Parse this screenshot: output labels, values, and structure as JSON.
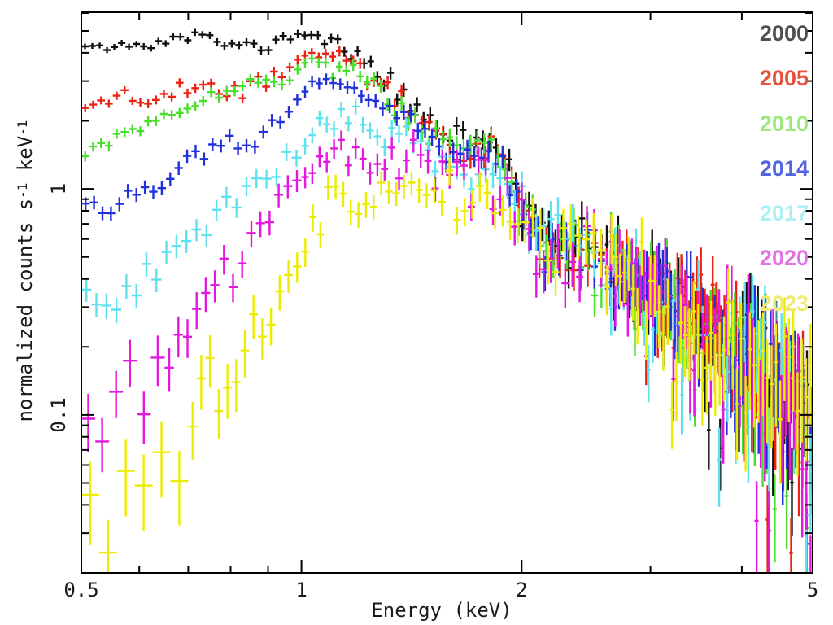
{
  "chart_data": {
    "type": "scatter",
    "style": "xray-spectrum-error-crosses",
    "title": "",
    "xlabel": "Energy (keV)",
    "ylabel": "normalized counts s^-1 keV^-1",
    "ylabel_parts": {
      "base1": "normalized counts s",
      "exp1": "-1",
      "base2": " keV",
      "exp2": "-1"
    },
    "x_scale": "log",
    "y_scale": "log",
    "x_range": [
      0.5,
      5.0
    ],
    "y_range": [
      0.02,
      6.05
    ],
    "x_ticks_major": [
      {
        "value": 0.5,
        "label": "0.5"
      },
      {
        "value": 1,
        "label": "1"
      },
      {
        "value": 2,
        "label": "2"
      },
      {
        "value": 5,
        "label": "5"
      }
    ],
    "x_ticks_minor": [
      0.6,
      0.7,
      0.8,
      0.9,
      3,
      4
    ],
    "y_ticks_major": [
      {
        "value": 1,
        "label": "1"
      },
      {
        "value": 0.1,
        "label": "0.1"
      }
    ],
    "y_ticks_minor": [
      6,
      5,
      4,
      3,
      2,
      0.9,
      0.8,
      0.7,
      0.6,
      0.5,
      0.4,
      0.3,
      0.2,
      0.09,
      0.08,
      0.07,
      0.06,
      0.05,
      0.04,
      0.03
    ],
    "frame_color": "#000000",
    "tick_label_color": "#1a1a1a",
    "legend_position": "top-right",
    "noise_model": {
      "base": 0.06,
      "slope": 0.12,
      "cap": 0.42,
      "scatter": 0.85
    },
    "common_tail": [
      [
        2.3,
        0.55
      ],
      [
        2.45,
        0.56
      ],
      [
        2.6,
        0.47
      ],
      [
        2.8,
        0.41
      ],
      [
        3.0,
        0.35
      ],
      [
        3.2,
        0.3
      ],
      [
        3.5,
        0.26
      ],
      [
        3.8,
        0.215
      ],
      [
        4.1,
        0.18
      ],
      [
        4.4,
        0.15
      ],
      [
        4.7,
        0.12
      ],
      [
        5.0,
        0.095
      ]
    ],
    "series": [
      {
        "name": "2000",
        "color": "#111111",
        "legend_color": "#4f4f4f",
        "seed": 11,
        "err_scale": 1.0,
        "segments": [
          [
            0.5,
            1.0,
            30
          ],
          [
            1.0,
            2.6,
            46
          ],
          [
            2.6,
            5.0,
            55
          ]
        ],
        "anchors": [
          [
            0.5,
            4.4
          ],
          [
            0.56,
            4.35
          ],
          [
            0.62,
            4.3
          ],
          [
            0.68,
            4.7
          ],
          [
            0.74,
            4.7
          ],
          [
            0.8,
            4.35
          ],
          [
            0.86,
            4.2
          ],
          [
            0.92,
            4.45
          ],
          [
            1.0,
            4.95
          ],
          [
            1.06,
            4.75
          ],
          [
            1.12,
            4.35
          ],
          [
            1.2,
            3.8
          ],
          [
            1.3,
            3.1
          ],
          [
            1.4,
            2.35
          ],
          [
            1.5,
            2.05
          ],
          [
            1.6,
            1.8
          ],
          [
            1.7,
            1.72
          ],
          [
            1.8,
            1.68
          ],
          [
            1.9,
            1.5
          ],
          [
            2.0,
            0.92
          ],
          [
            2.1,
            0.66
          ]
        ]
      },
      {
        "name": "2005",
        "color": "#ee2012",
        "legend_color": "#e2543e",
        "seed": 22,
        "err_scale": 1.0,
        "segments": [
          [
            0.5,
            1.0,
            28
          ],
          [
            1.0,
            2.6,
            44
          ],
          [
            2.6,
            5.0,
            53
          ]
        ],
        "anchors": [
          [
            0.5,
            2.25
          ],
          [
            0.54,
            2.4
          ],
          [
            0.58,
            2.65
          ],
          [
            0.63,
            2.5
          ],
          [
            0.68,
            2.7
          ],
          [
            0.73,
            2.85
          ],
          [
            0.78,
            2.65
          ],
          [
            0.83,
            2.8
          ],
          [
            0.88,
            3.05
          ],
          [
            0.93,
            3.25
          ],
          [
            0.98,
            3.75
          ],
          [
            1.03,
            4.05
          ],
          [
            1.1,
            3.85
          ],
          [
            1.2,
            3.45
          ],
          [
            1.3,
            2.9
          ],
          [
            1.4,
            2.25
          ],
          [
            1.5,
            1.95
          ],
          [
            1.6,
            1.65
          ],
          [
            1.75,
            1.55
          ],
          [
            1.9,
            1.4
          ],
          [
            2.0,
            0.88
          ],
          [
            2.1,
            0.63
          ]
        ]
      },
      {
        "name": "2010",
        "color": "#4ade2e",
        "legend_color": "#9be87b",
        "seed": 33,
        "err_scale": 1.0,
        "segments": [
          [
            0.5,
            1.0,
            28
          ],
          [
            1.0,
            2.6,
            44
          ],
          [
            2.6,
            5.0,
            52
          ]
        ],
        "anchors": [
          [
            0.5,
            1.36
          ],
          [
            0.55,
            1.68
          ],
          [
            0.6,
            1.82
          ],
          [
            0.65,
            2.15
          ],
          [
            0.7,
            2.3
          ],
          [
            0.75,
            2.55
          ],
          [
            0.8,
            2.65
          ],
          [
            0.85,
            2.85
          ],
          [
            0.9,
            2.95
          ],
          [
            0.95,
            3.15
          ],
          [
            1.03,
            3.7
          ],
          [
            1.1,
            3.45
          ],
          [
            1.2,
            3.1
          ],
          [
            1.3,
            2.7
          ],
          [
            1.4,
            2.15
          ],
          [
            1.5,
            1.85
          ],
          [
            1.6,
            1.55
          ],
          [
            1.75,
            1.5
          ],
          [
            1.9,
            1.35
          ],
          [
            2.0,
            0.85
          ],
          [
            2.1,
            0.62
          ]
        ]
      },
      {
        "name": "2014",
        "color": "#2230db",
        "legend_color": "#5465e2",
        "seed": 44,
        "err_scale": 1.0,
        "segments": [
          [
            0.5,
            1.0,
            26
          ],
          [
            1.0,
            2.6,
            43
          ],
          [
            2.6,
            5.0,
            52
          ]
        ],
        "anchors": [
          [
            0.5,
            0.85
          ],
          [
            0.55,
            0.82
          ],
          [
            0.6,
            0.95
          ],
          [
            0.65,
            1.1
          ],
          [
            0.7,
            1.3
          ],
          [
            0.75,
            1.5
          ],
          [
            0.78,
            1.62
          ],
          [
            0.82,
            1.55
          ],
          [
            0.86,
            1.7
          ],
          [
            0.9,
            1.9
          ],
          [
            0.95,
            2.2
          ],
          [
            1.0,
            2.6
          ],
          [
            1.05,
            2.9
          ],
          [
            1.1,
            3.0
          ],
          [
            1.15,
            2.8
          ],
          [
            1.2,
            2.6
          ],
          [
            1.3,
            2.3
          ],
          [
            1.4,
            2.0
          ],
          [
            1.5,
            1.7
          ],
          [
            1.6,
            1.42
          ],
          [
            1.7,
            1.36
          ],
          [
            1.8,
            1.32
          ],
          [
            1.9,
            1.25
          ],
          [
            2.0,
            0.82
          ],
          [
            2.1,
            0.62
          ]
        ]
      },
      {
        "name": "2017",
        "color": "#5fe2ef",
        "legend_color": "#aeeff1",
        "seed": 55,
        "err_scale": 1.1,
        "segments": [
          [
            0.5,
            1.0,
            22
          ],
          [
            1.0,
            2.6,
            42
          ],
          [
            2.6,
            5.0,
            50
          ]
        ],
        "anchors": [
          [
            0.5,
            0.34
          ],
          [
            0.54,
            0.29
          ],
          [
            0.58,
            0.34
          ],
          [
            0.62,
            0.42
          ],
          [
            0.66,
            0.47
          ],
          [
            0.7,
            0.55
          ],
          [
            0.75,
            0.68
          ],
          [
            0.8,
            0.83
          ],
          [
            0.85,
            0.95
          ],
          [
            0.9,
            1.1
          ],
          [
            0.95,
            1.3
          ],
          [
            1.0,
            1.55
          ],
          [
            1.05,
            1.8
          ],
          [
            1.1,
            2.0
          ],
          [
            1.15,
            2.1
          ],
          [
            1.2,
            2.0
          ],
          [
            1.3,
            1.85
          ],
          [
            1.4,
            1.75
          ],
          [
            1.5,
            1.45
          ],
          [
            1.6,
            1.22
          ],
          [
            1.7,
            1.17
          ],
          [
            1.8,
            1.15
          ],
          [
            1.9,
            1.1
          ],
          [
            2.0,
            0.78
          ],
          [
            2.1,
            0.6
          ]
        ]
      },
      {
        "name": "2020",
        "color": "#e317dd",
        "legend_color": "#e373e3",
        "seed": 66,
        "err_scale": 1.2,
        "segments": [
          [
            0.5,
            0.65,
            6
          ],
          [
            0.65,
            1.0,
            15
          ],
          [
            1.0,
            2.6,
            42
          ],
          [
            2.6,
            5.0,
            50
          ]
        ],
        "anchors": [
          [
            0.52,
            0.065
          ],
          [
            0.56,
            0.115
          ],
          [
            0.59,
            0.12
          ],
          [
            0.62,
            0.095
          ],
          [
            0.66,
            0.17
          ],
          [
            0.7,
            0.23
          ],
          [
            0.74,
            0.3
          ],
          [
            0.78,
            0.44
          ],
          [
            0.82,
            0.55
          ],
          [
            0.86,
            0.62
          ],
          [
            0.9,
            0.75
          ],
          [
            0.95,
            0.92
          ],
          [
            1.0,
            1.1
          ],
          [
            1.05,
            1.3
          ],
          [
            1.1,
            1.5
          ],
          [
            1.15,
            1.55
          ],
          [
            1.2,
            1.35
          ],
          [
            1.25,
            1.3
          ],
          [
            1.3,
            1.4
          ],
          [
            1.4,
            1.35
          ],
          [
            1.5,
            1.3
          ],
          [
            1.6,
            1.2
          ],
          [
            1.7,
            1.15
          ],
          [
            1.8,
            1.1
          ],
          [
            1.9,
            1.0
          ],
          [
            2.0,
            0.72
          ],
          [
            2.1,
            0.57
          ]
        ]
      },
      {
        "name": "2023",
        "color": "#ecec00",
        "legend_color": "#f1e973",
        "seed": 77,
        "err_scale": 1.15,
        "segments": [
          [
            0.5,
            0.7,
            6
          ],
          [
            0.7,
            1.0,
            13
          ],
          [
            1.0,
            2.6,
            40
          ],
          [
            2.6,
            5.0,
            48
          ]
        ],
        "anchors": [
          [
            0.53,
            0.031
          ],
          [
            0.58,
            0.045
          ],
          [
            0.62,
            0.048
          ],
          [
            0.65,
            0.053
          ],
          [
            0.68,
            0.057
          ],
          [
            0.71,
            0.1
          ],
          [
            0.74,
            0.12
          ],
          [
            0.77,
            0.145
          ],
          [
            0.8,
            0.12
          ],
          [
            0.83,
            0.165
          ],
          [
            0.86,
            0.21
          ],
          [
            0.9,
            0.28
          ],
          [
            0.95,
            0.4
          ],
          [
            1.0,
            0.55
          ],
          [
            1.05,
            0.72
          ],
          [
            1.1,
            0.85
          ],
          [
            1.15,
            0.92
          ],
          [
            1.2,
            0.86
          ],
          [
            1.25,
            0.95
          ],
          [
            1.3,
            1.1
          ],
          [
            1.4,
            1.15
          ],
          [
            1.5,
            1.1
          ],
          [
            1.6,
            1.0
          ],
          [
            1.7,
            0.95
          ],
          [
            1.8,
            0.9
          ],
          [
            1.9,
            0.85
          ],
          [
            2.0,
            0.66
          ],
          [
            2.1,
            0.54
          ]
        ]
      }
    ]
  }
}
